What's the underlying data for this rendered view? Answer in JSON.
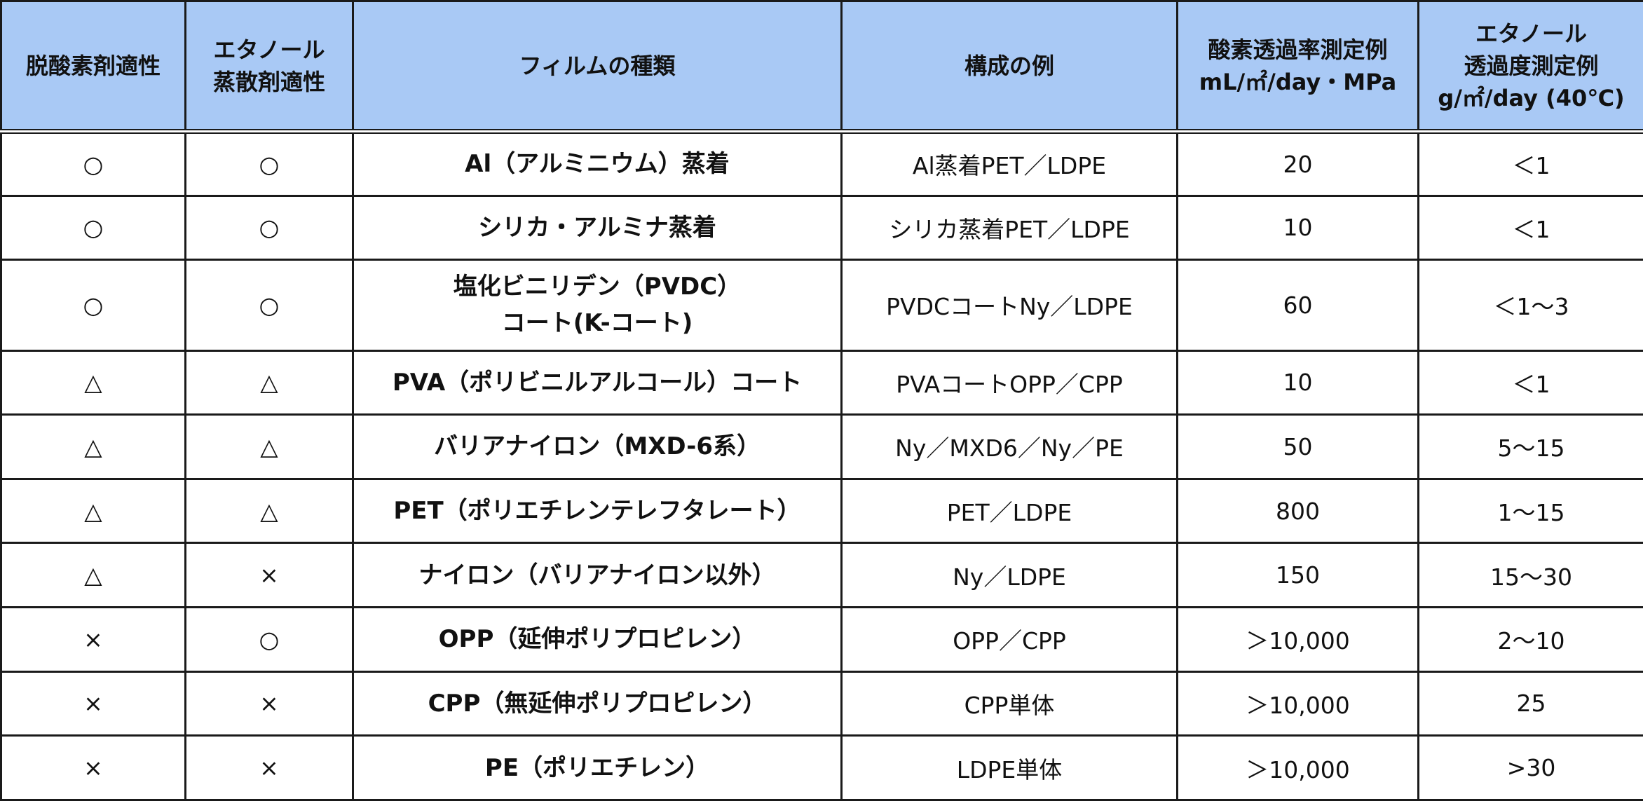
{
  "header": {
    "col1": [
      "脱酸素剤適性"
    ],
    "col2": [
      "エタノール",
      "蒸散剤適性"
    ],
    "col3": [
      "フィルムの種類"
    ],
    "col4": [
      "構成の例"
    ],
    "col5": [
      "酸素透過率測定例",
      "mL/㎡/day・MPa"
    ],
    "col6": [
      "エタノール",
      "透過度測定例",
      "g/㎡/day (40℃)"
    ]
  },
  "rows": [
    {
      "oxygen_absorber": "○",
      "ethanol_emitter": "○",
      "film": [
        "Al（アルミニウム）蒸着"
      ],
      "composition": "Al蒸着PET／LDPE",
      "oxygen_rate": "20",
      "ethanol_rate": "＜1"
    },
    {
      "oxygen_absorber": "○",
      "ethanol_emitter": "○",
      "film": [
        "シリカ・アルミナ蒸着"
      ],
      "composition": "シリカ蒸着PET／LDPE",
      "oxygen_rate": "10",
      "ethanol_rate": "＜1"
    },
    {
      "oxygen_absorber": "○",
      "ethanol_emitter": "○",
      "film": [
        "塩化ビニリデン（PVDC）",
        "コート(K-コート)"
      ],
      "composition": "PVDCコートNy／LDPE",
      "oxygen_rate": "60",
      "ethanol_rate": "＜1～3"
    },
    {
      "oxygen_absorber": "△",
      "ethanol_emitter": "△",
      "film": [
        "PVA（ポリビニルアルコール）コート"
      ],
      "composition": "PVAコートOPP／CPP",
      "oxygen_rate": "10",
      "ethanol_rate": "＜1"
    },
    {
      "oxygen_absorber": "△",
      "ethanol_emitter": "△",
      "film": [
        "バリアナイロン（MXD-6系）"
      ],
      "composition": "Ny／MXD6／Ny／PE",
      "oxygen_rate": "50",
      "ethanol_rate": "5～15"
    },
    {
      "oxygen_absorber": "△",
      "ethanol_emitter": "△",
      "film": [
        "PET（ポリエチレンテレフタレート）"
      ],
      "composition": "PET／LDPE",
      "oxygen_rate": "800",
      "ethanol_rate": "1～15"
    },
    {
      "oxygen_absorber": "△",
      "ethanol_emitter": "×",
      "film": [
        "ナイロン（バリアナイロン以外）"
      ],
      "composition": "Ny／LDPE",
      "oxygen_rate": "150",
      "ethanol_rate": "15～30"
    },
    {
      "oxygen_absorber": "×",
      "ethanol_emitter": "○",
      "film": [
        "OPP（延伸ポリプロピレン）"
      ],
      "composition": "OPP／CPP",
      "oxygen_rate": "＞10,000",
      "ethanol_rate": "2～10"
    },
    {
      "oxygen_absorber": "×",
      "ethanol_emitter": "×",
      "film": [
        "CPP（無延伸ポリプロピレン）"
      ],
      "composition": "CPP単体",
      "oxygen_rate": "＞10,000",
      "ethanol_rate": "25"
    },
    {
      "oxygen_absorber": "×",
      "ethanol_emitter": "×",
      "film": [
        "PE（ポリエチレン）"
      ],
      "composition": "LDPE単体",
      "oxygen_rate": "＞10,000",
      "ethanol_rate": ">30"
    }
  ],
  "colors": {
    "header_background": "#a9c9f5",
    "border": "#1a1a1a"
  }
}
